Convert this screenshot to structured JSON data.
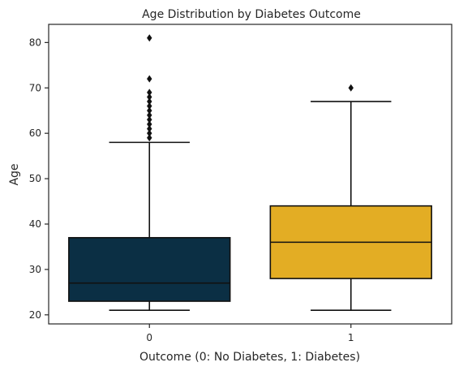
{
  "chart_data": {
    "type": "box",
    "title": "Age Distribution by Diabetes Outcome",
    "xlabel": "Outcome (0: No Diabetes, 1: Diabetes)",
    "ylabel": "Age",
    "categories": [
      "0",
      "1"
    ],
    "ylim": [
      18,
      84
    ],
    "yticks": [
      20,
      30,
      40,
      50,
      60,
      70,
      80
    ],
    "grid": false,
    "boxes": [
      {
        "category": "0",
        "color": "#0b2f44",
        "whisker_low": 21,
        "q1": 23,
        "median": 27,
        "q3": 37,
        "whisker_high": 58,
        "outliers": [
          59,
          60,
          61,
          62,
          63,
          64,
          65,
          66,
          67,
          68,
          69,
          72,
          81
        ]
      },
      {
        "category": "1",
        "color": "#e3ad24",
        "whisker_low": 21,
        "q1": 28,
        "median": 36,
        "q3": 44,
        "whisker_high": 67,
        "outliers": [
          70
        ]
      }
    ]
  }
}
